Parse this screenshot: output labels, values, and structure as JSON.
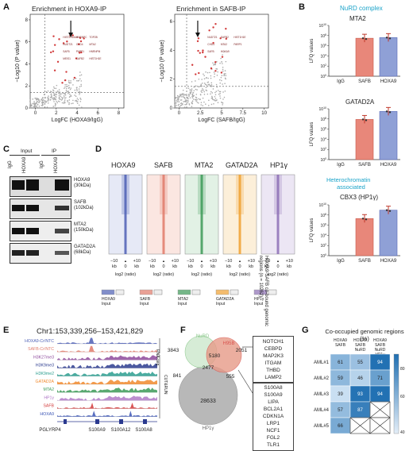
{
  "colors": {
    "hoxa9": "#4d5fb5",
    "safb": "#e07a6a",
    "mta2": "#3c9a57",
    "gatad2a": "#f0a030",
    "hp1": "#8d6fb5",
    "nurd": "#8bc88b",
    "h95b": "#d9534f",
    "grey": "#9a9a9a",
    "cyan": "#1aa3c9",
    "heat_dark": "#1f6fb2",
    "heat_light": "#c9dff2"
  },
  "panel_A": {
    "letter": "A",
    "plot1": {
      "title": "Enrichment in HOXA9-IP",
      "xlabel": "LogFC (HOXA9/IgG)",
      "ylabel": "−Log10 (P value)",
      "xticks": [
        "0",
        "2",
        "4",
        "6",
        "8"
      ],
      "yticks": [
        "0",
        "2",
        "4",
        "6",
        "8"
      ],
      "xlim": [
        -0.5,
        8.5
      ],
      "ylim": [
        0,
        8.5
      ],
      "labeled_hits": [
        "HIST2H2AA4",
        "HNRNPC",
        "TOP2B",
        "NUDT21",
        "CHD4",
        "MTA2",
        "SAFB",
        "PARP1",
        "HNRNPM",
        "MEIS1",
        "SAFB2",
        "HIST1H1E"
      ]
    },
    "plot2": {
      "title": "Enrichment in SAFB-IP",
      "xlabel": "LogFC (SAFB/IgG)",
      "ylabel": "−Log10 (P value)",
      "xticks": [
        "0",
        "2.5",
        "5",
        "7.5",
        "10"
      ],
      "yticks": [
        "0",
        "2",
        "4",
        "6"
      ],
      "xlim": [
        -0.5,
        10.5
      ],
      "ylim": [
        0,
        6.5
      ],
      "labeled_hits": [
        "NUDT21",
        "SAFB2",
        "HIST1H1E",
        "CHD4",
        "MTA2",
        "PARP1",
        "SAFB",
        "HOXA9"
      ]
    }
  },
  "panel_B": {
    "letter": "B",
    "nurd_label": "NuRD complex",
    "hetero_label": "Heterochromatin associated",
    "ylabel": "LFQ values",
    "yticks": [
      "10^10",
      "10^8",
      "10^6",
      "10^4",
      "10^2",
      "10^0"
    ],
    "categories": [
      "IgG",
      "SAFB",
      "HOXA9"
    ],
    "plots": [
      {
        "title": "MTA2",
        "values": [
          0,
          30000000.0,
          40000000.0
        ]
      },
      {
        "title": "GATAD2A",
        "values": [
          0,
          80000000.0,
          3000000000.0
        ]
      },
      {
        "title": "CBX3 (HP1γ)",
        "values": [
          0,
          20000000.0,
          900000000.0
        ]
      }
    ]
  },
  "panel_C": {
    "letter": "C",
    "input_label": "Input",
    "ip_label": "IP",
    "lanes": [
      "IgG",
      "HOXA9",
      "IgG",
      "HOXA9"
    ],
    "blots": [
      {
        "name": "HOXA9",
        "kda": "(30kDa)"
      },
      {
        "name": "SAFB",
        "kda": "(102kDa)"
      },
      {
        "name": "MTA2",
        "kda": "(150kDa)"
      },
      {
        "name": "GATAD2A",
        "kda": "(68kDa)"
      }
    ]
  },
  "panel_D": {
    "letter": "D",
    "columns": [
      "HOXA9",
      "SAFB",
      "MTA2",
      "GATAD2A",
      "HP1γ"
    ],
    "side_label": "HOXA9-SAFB co-bound genomic regions (n = 10262)",
    "tick_left": "−10",
    "tick_right": "+10",
    "tick_center": "0",
    "tick_unit": "kb",
    "xlabel": "log2 (ratio)",
    "legend_sub": "Input"
  },
  "panel_E": {
    "letter": "E",
    "coords": "Chr1:153,339,256–153,421,829",
    "tracks": [
      "HOXA9-Cr/NTC",
      "SAFB-Cr/NTC",
      "H3K27me3",
      "H3K9me3",
      "H3K9me2",
      "GATAD2A",
      "MTA2",
      "HP1γ",
      "SAFB",
      "HOXA9"
    ],
    "side_labels": [
      "RNA-seq",
      "CUT&RUN"
    ],
    "genes": [
      "PGLYRP4",
      "S100A9",
      "S100A12",
      "S100A8"
    ]
  },
  "panel_F": {
    "letter": "F",
    "set_labels": [
      "NuRD",
      "H95B",
      "HP1γ"
    ],
    "counts": {
      "nurd_only": "3843",
      "h95b_only": "2051",
      "center": "5180",
      "inner": "2477",
      "left": "841",
      "right": "555",
      "hp1_only": "28633"
    },
    "genes_top": [
      "NOTCH1",
      "CEBPD",
      "MAP2K3",
      "ITGAM",
      "THBD",
      "LAMP2"
    ],
    "genes_bottom": [
      "S100A8",
      "S100A9",
      "LIPA",
      "BCL2A1",
      "CDKN1A",
      "LRP1",
      "NCF1",
      "FGL2",
      "TLR1"
    ]
  },
  "panel_G": {
    "letter": "G",
    "title": "Co-occupied genomic regions (%)",
    "col_headers": [
      "HOXA9\nSAFB",
      "HOXA9\nSAFB\nNuRD",
      "HOXA9\nSAFB\nNuRD\nHP1γ"
    ],
    "rows": [
      "AML#1",
      "AML#2",
      "AML#3",
      "AML#4",
      "AML#5"
    ],
    "values": [
      [
        61,
        55,
        94
      ],
      [
        59,
        46,
        71
      ],
      [
        39,
        93,
        94
      ],
      [
        57,
        87,
        null
      ],
      [
        66,
        null,
        null
      ]
    ],
    "scale_ticks": [
      "80",
      "60",
      "40"
    ]
  }
}
